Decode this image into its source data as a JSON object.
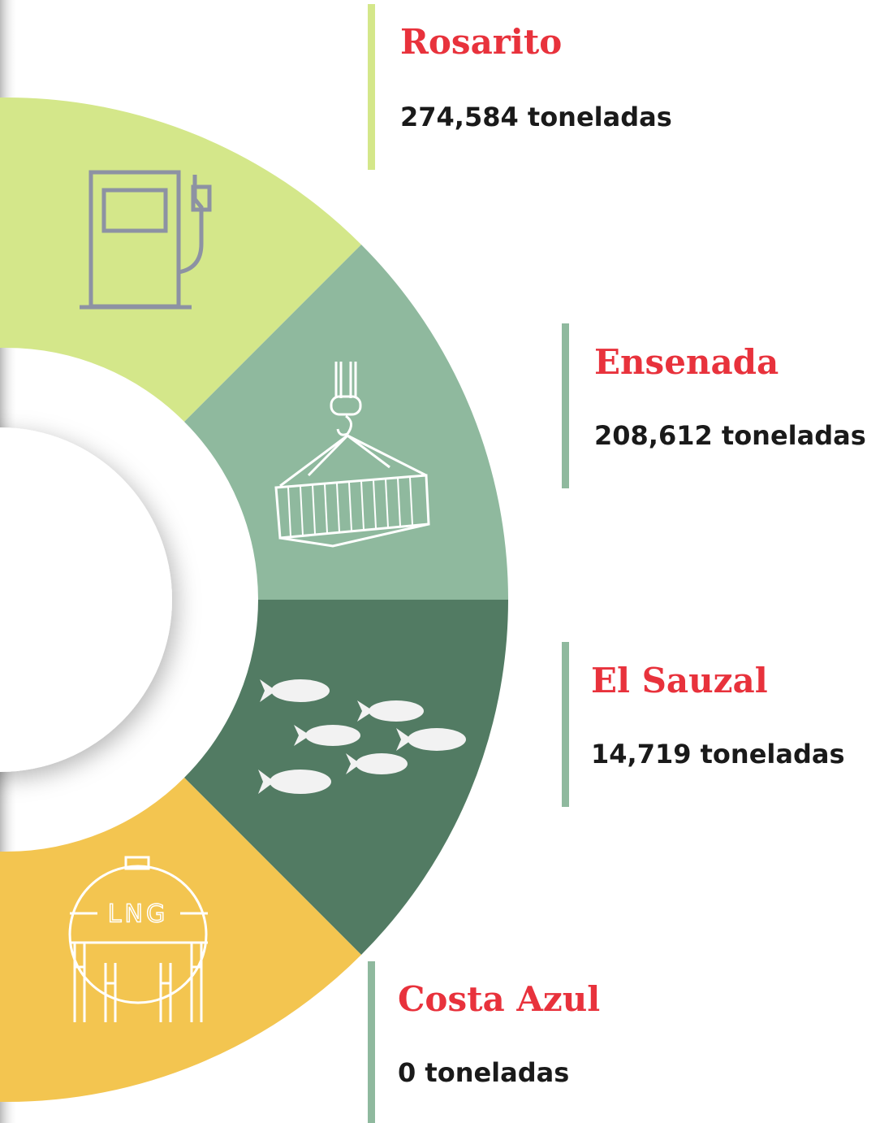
{
  "items": [
    {
      "name": "Rosarito",
      "value": "274,584 toneladas"
    },
    {
      "name": "Ensenada",
      "value": "208,612 toneladas"
    },
    {
      "name": "El Sauzal",
      "value": "14,719 toneladas"
    },
    {
      "name": "Costa Azul",
      "value": "0 toneladas"
    }
  ],
  "icon_text": "LNG"
}
